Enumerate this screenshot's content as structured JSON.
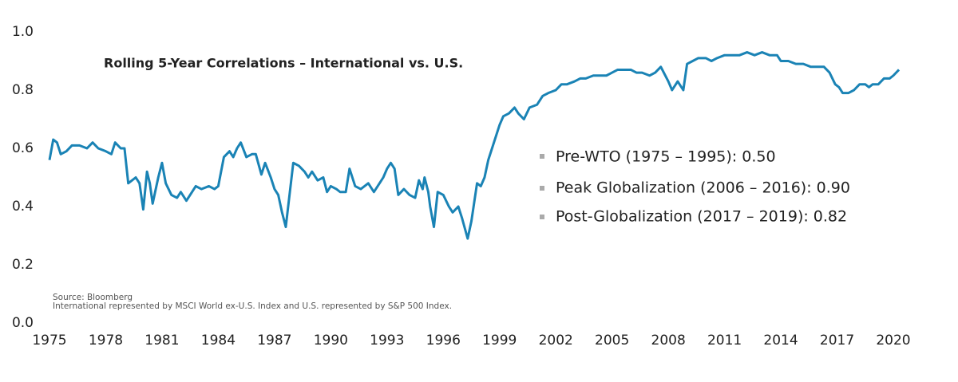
{
  "chart_data": {
    "type": "line",
    "title": "Rolling 5-Year Correlations – International vs. U.S.",
    "annotations": [
      "Pre-WTO (1975 – 1995): 0.50",
      "Peak Globalization (2006 – 2016): 0.90",
      "Post-Globalization (2017 – 2019): 0.82"
    ],
    "notes": [
      "Source: Bloomberg",
      "International represented by MSCI World ex-U.S. Index and U.S. represented by S&P 500 Index."
    ],
    "grid": false,
    "xlim": [
      1975,
      2020
    ],
    "xticks": [
      1975,
      1978,
      1981,
      1984,
      1987,
      1990,
      1993,
      1996,
      1999,
      2002,
      2005,
      2008,
      2011,
      2014,
      2017,
      2020
    ],
    "ylim": [
      0,
      1
    ],
    "yticks": [
      {
        "value": 0,
        "label": "0.0"
      },
      0.2,
      0.4,
      0.6,
      0.8,
      {
        "value": 1,
        "label": "1.0"
      }
    ],
    "x": [
      1975.0,
      1975.2,
      1975.4,
      1975.6,
      1975.9,
      1976.2,
      1976.6,
      1977.0,
      1977.3,
      1977.6,
      1978.0,
      1978.3,
      1978.5,
      1978.8,
      1979.0,
      1979.2,
      1979.4,
      1979.6,
      1979.8,
      1980.0,
      1980.2,
      1980.35,
      1980.5,
      1980.8,
      1981.0,
      1981.2,
      1981.5,
      1981.8,
      1982.0,
      1982.3,
      1982.5,
      1982.8,
      1983.1,
      1983.5,
      1983.8,
      1984.0,
      1984.3,
      1984.6,
      1984.8,
      1985.0,
      1985.2,
      1985.5,
      1985.8,
      1986.0,
      1986.3,
      1986.5,
      1986.8,
      1987.0,
      1987.2,
      1987.4,
      1987.6,
      1988.0,
      1988.3,
      1988.6,
      1988.8,
      1989.0,
      1989.3,
      1989.6,
      1989.8,
      1990.0,
      1990.3,
      1990.5,
      1990.8,
      1991.0,
      1991.3,
      1991.6,
      1992.0,
      1992.3,
      1992.6,
      1992.8,
      1993.0,
      1993.2,
      1993.4,
      1993.6,
      1993.9,
      1994.2,
      1994.5,
      1994.7,
      1994.9,
      1995.0,
      1995.2,
      1995.3,
      1995.5,
      1995.7,
      1996.0,
      1996.3,
      1996.5,
      1996.8,
      1997.0,
      1997.3,
      1997.5,
      1997.8,
      1998.0,
      1998.2,
      1998.4,
      1998.6,
      1999.0,
      1999.2,
      1999.5,
      1999.8,
      2000.0,
      2000.3,
      2000.6,
      2001.0,
      2001.3,
      2001.6,
      2002.0,
      2002.3,
      2002.6,
      2003.0,
      2003.3,
      2003.6,
      2004.0,
      2004.4,
      2004.7,
      2005.0,
      2005.3,
      2005.6,
      2006.0,
      2006.3,
      2006.6,
      2007.0,
      2007.3,
      2007.6,
      2008.0,
      2008.2,
      2008.5,
      2008.8,
      2009.0,
      2009.3,
      2009.6,
      2010.0,
      2010.3,
      2010.6,
      2011.0,
      2011.4,
      2011.8,
      2012.2,
      2012.6,
      2013.0,
      2013.4,
      2013.8,
      2014.0,
      2014.4,
      2014.8,
      2015.2,
      2015.6,
      2016.0,
      2016.3,
      2016.6,
      2016.9,
      2017.1,
      2017.3,
      2017.6,
      2017.9,
      2018.2,
      2018.5,
      2018.7,
      2018.9,
      2019.2,
      2019.5,
      2019.8,
      2020.0,
      2020.3
    ],
    "series": [
      {
        "color": "#1a83b5",
        "values": [
          0.56,
          0.63,
          0.62,
          0.58,
          0.59,
          0.61,
          0.61,
          0.6,
          0.62,
          0.6,
          0.59,
          0.58,
          0.62,
          0.6,
          0.6,
          0.48,
          0.49,
          0.5,
          0.48,
          0.39,
          0.52,
          0.48,
          0.41,
          0.5,
          0.55,
          0.48,
          0.44,
          0.43,
          0.45,
          0.42,
          0.44,
          0.47,
          0.46,
          0.47,
          0.46,
          0.47,
          0.57,
          0.59,
          0.57,
          0.6,
          0.62,
          0.57,
          0.58,
          0.58,
          0.51,
          0.55,
          0.5,
          0.46,
          0.44,
          0.38,
          0.33,
          0.55,
          0.54,
          0.52,
          0.5,
          0.52,
          0.49,
          0.5,
          0.45,
          0.47,
          0.46,
          0.45,
          0.45,
          0.53,
          0.47,
          0.46,
          0.48,
          0.45,
          0.48,
          0.5,
          0.53,
          0.55,
          0.53,
          0.44,
          0.46,
          0.44,
          0.43,
          0.49,
          0.46,
          0.5,
          0.45,
          0.4,
          0.33,
          0.45,
          0.44,
          0.4,
          0.38,
          0.4,
          0.36,
          0.29,
          0.35,
          0.48,
          0.47,
          0.5,
          0.56,
          0.6,
          0.68,
          0.71,
          0.72,
          0.74,
          0.72,
          0.7,
          0.74,
          0.75,
          0.78,
          0.79,
          0.8,
          0.82,
          0.82,
          0.83,
          0.84,
          0.84,
          0.85,
          0.85,
          0.85,
          0.86,
          0.87,
          0.87,
          0.87,
          0.86,
          0.86,
          0.85,
          0.86,
          0.88,
          0.83,
          0.8,
          0.83,
          0.8,
          0.89,
          0.9,
          0.91,
          0.91,
          0.9,
          0.91,
          0.92,
          0.92,
          0.92,
          0.93,
          0.92,
          0.93,
          0.92,
          0.92,
          0.9,
          0.9,
          0.89,
          0.89,
          0.88,
          0.88,
          0.88,
          0.86,
          0.82,
          0.81,
          0.79,
          0.79,
          0.8,
          0.82,
          0.82,
          0.81,
          0.82,
          0.82,
          0.84,
          0.84,
          0.85,
          0.87
        ]
      }
    ]
  }
}
